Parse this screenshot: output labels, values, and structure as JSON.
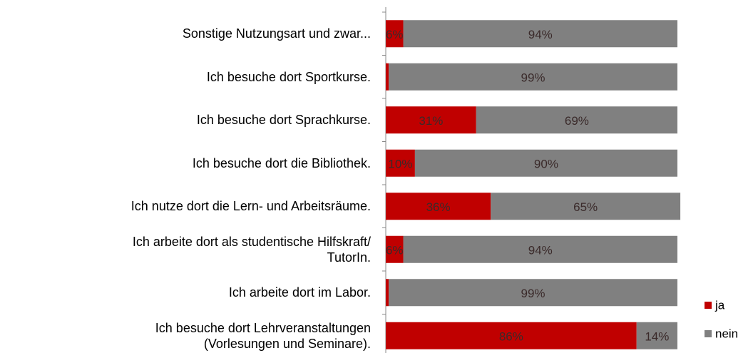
{
  "chart_data": {
    "type": "stacked-bar-horizontal",
    "categories": [
      "Sonstige Nutzungsart und zwar...",
      "Ich besuche dort Sportkurse.",
      "Ich besuche dort Sprachkurse.",
      "Ich besuche dort die Bibliothek.",
      "Ich nutze dort die Lern- und Arbeitsräume.",
      "Ich arbeite dort als studentische Hilfskraft/\nTutorIn.",
      "Ich arbeite dort im Labor.",
      "Ich besuche dort Lehrveranstaltungen\n(Vorlesungen und Seminare)."
    ],
    "series": [
      {
        "name": "ja",
        "color": "#c00000",
        "values": [
          6,
          1,
          31,
          10,
          36,
          6,
          1,
          86
        ],
        "value_labels": [
          "6%",
          null,
          "31%",
          "10%",
          "36%",
          "6%",
          null,
          "86%"
        ]
      },
      {
        "name": "nein",
        "color": "#808080",
        "values": [
          94,
          99,
          69,
          90,
          65,
          94,
          99,
          14
        ],
        "value_labels": [
          "94%",
          "99%",
          "69%",
          "90%",
          "65%",
          "94%",
          "99%",
          "14%"
        ]
      }
    ],
    "xlim": [
      0,
      100
    ],
    "legend": "bottom-right"
  }
}
